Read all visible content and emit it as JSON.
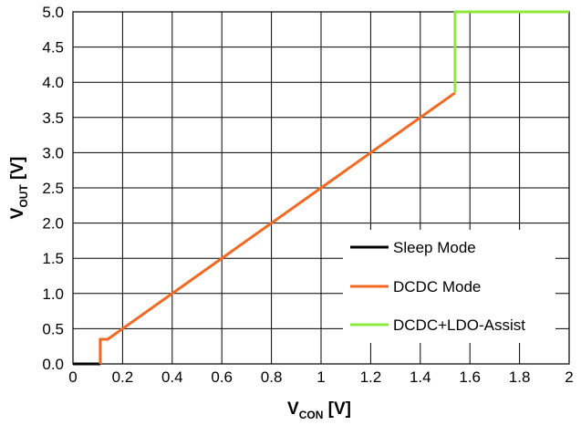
{
  "chart_data": {
    "type": "line",
    "xlabel": {
      "main": "V",
      "sub": "CON",
      "unit": " [V]"
    },
    "ylabel": {
      "main": "V",
      "sub": "OUT",
      "unit": " [V]"
    },
    "xlim": [
      0,
      2
    ],
    "ylim": [
      0,
      5
    ],
    "x_ticks": [
      "0",
      "0.2",
      "0.4",
      "0.6",
      "0.8",
      "1",
      "1.2",
      "1.4",
      "1.6",
      "1.8",
      "2"
    ],
    "y_ticks": [
      "0.0",
      "0.5",
      "1.0",
      "1.5",
      "2.0",
      "2.5",
      "3.0",
      "3.5",
      "4.0",
      "4.5",
      "5.0"
    ],
    "grid": true,
    "legend_position": "bottom-right",
    "series": [
      {
        "name": "Sleep Mode",
        "color": "#000000",
        "points": [
          [
            0,
            0
          ],
          [
            0.11,
            0
          ]
        ]
      },
      {
        "name": "DCDC Mode",
        "color": "#f26a21",
        "points": [
          [
            0.11,
            0
          ],
          [
            0.11,
            0.35
          ],
          [
            0.14,
            0.35
          ],
          [
            1.54,
            3.85
          ]
        ]
      },
      {
        "name": "DCDC+LDO-Assist",
        "color": "#8ee83c",
        "points": [
          [
            1.54,
            3.85
          ],
          [
            1.54,
            5.0
          ],
          [
            2.0,
            5.0
          ]
        ]
      }
    ]
  }
}
